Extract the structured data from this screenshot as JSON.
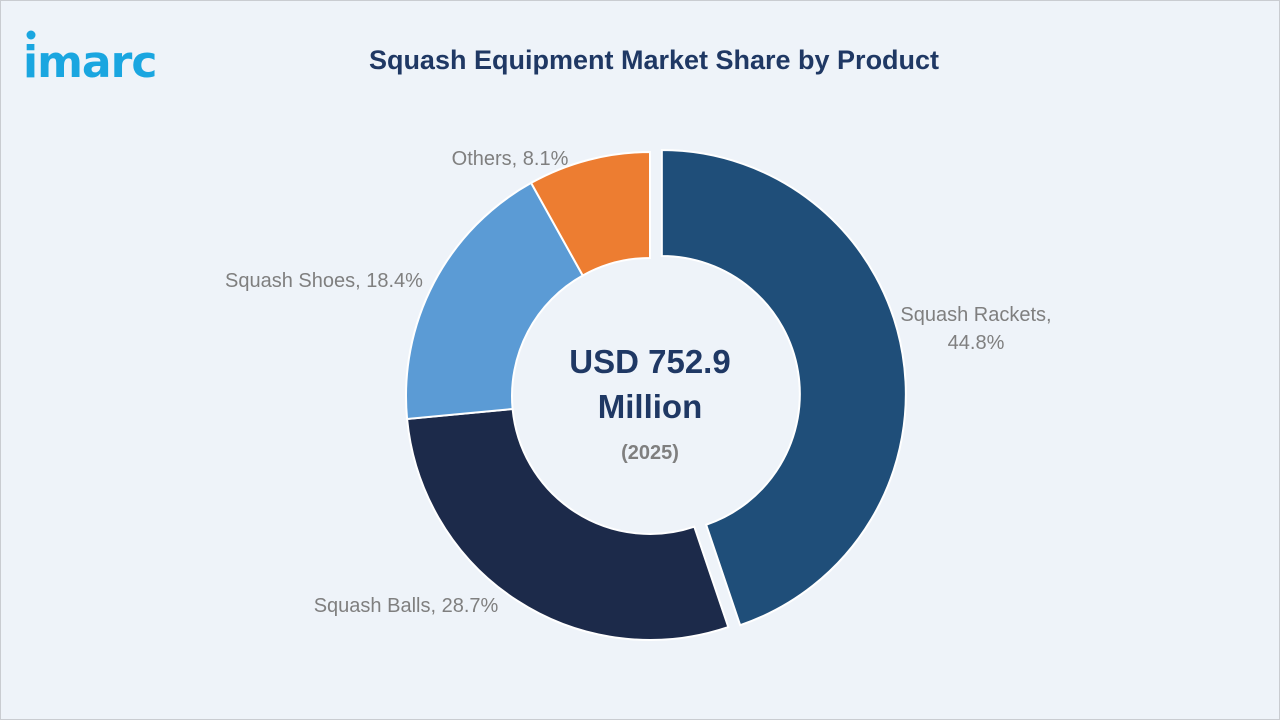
{
  "logo": {
    "text": "imarc"
  },
  "title": "Squash Equipment Market Share by Product",
  "center": {
    "line1": "USD 752.9",
    "line2": "Million",
    "year": "(2025)"
  },
  "chart_data": {
    "type": "pie",
    "style": "donut",
    "title": "Squash Equipment Market Share by Product",
    "unit": "%",
    "categories": [
      "Squash Rackets",
      "Squash Balls",
      "Squash Shoes",
      "Others"
    ],
    "values": [
      44.8,
      28.7,
      18.4,
      8.1
    ],
    "labels": [
      [
        "Squash Rackets,",
        "44.8%"
      ],
      [
        "Squash Balls, 28.7%"
      ],
      [
        "Squash Shoes, 18.4%"
      ],
      [
        "Others, 8.1%"
      ]
    ],
    "colors": [
      "#1f4e79",
      "#1c2a4a",
      "#5b9bd5",
      "#ed7d31"
    ],
    "start": "12 o'clock",
    "direction": "clockwise",
    "exploded_slice": "Squash Rackets",
    "legend": "none"
  }
}
